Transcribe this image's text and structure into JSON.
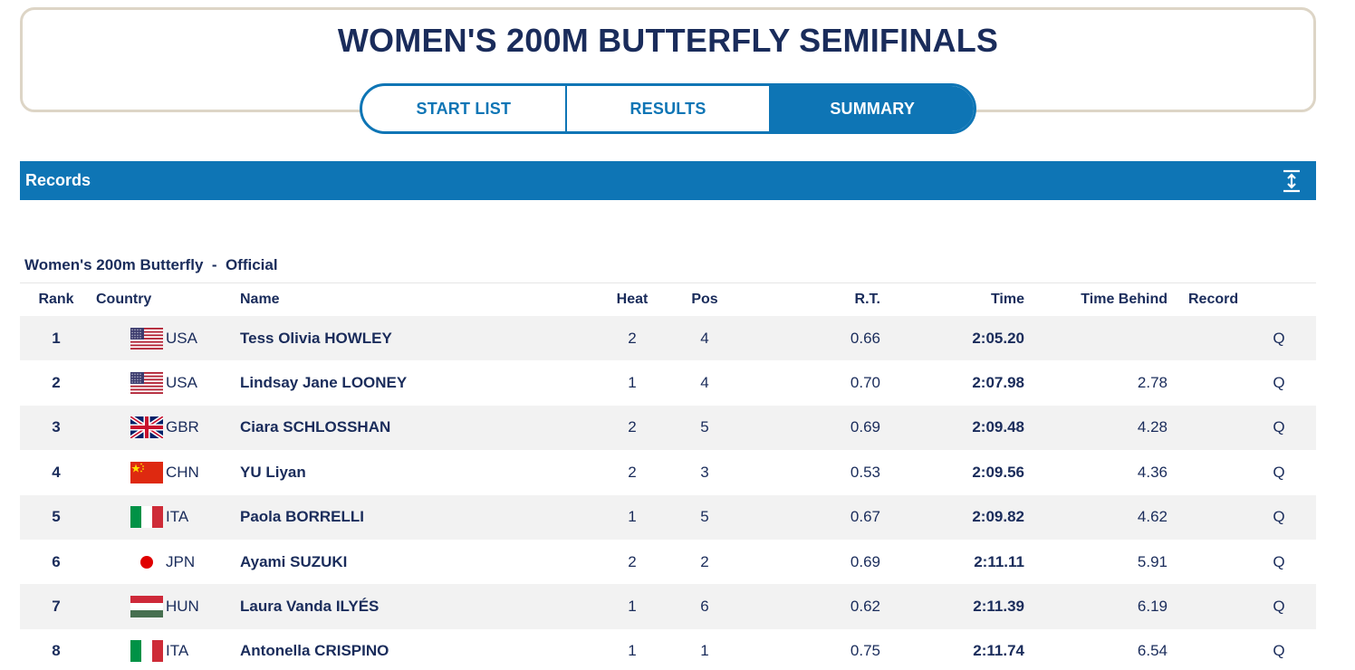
{
  "header": {
    "title": "WOMEN'S 200M BUTTERFLY SEMIFINALS",
    "tabs": [
      {
        "label": "START LIST",
        "active": false
      },
      {
        "label": "RESULTS",
        "active": false
      },
      {
        "label": "SUMMARY",
        "active": true
      }
    ]
  },
  "records": {
    "label": "Records",
    "icon": "expand-vertical-icon"
  },
  "event": {
    "subtitle": "Women's 200m Butterfly  -  Official"
  },
  "table": {
    "columns": [
      "Rank",
      "Country",
      "Name",
      "Heat",
      "Pos",
      "R.T.",
      "Time",
      "Time Behind",
      "Record"
    ],
    "rows": [
      {
        "rank": "1",
        "flag": "usa-flag-icon",
        "country": "USA",
        "name": "Tess Olivia HOWLEY",
        "heat": "2",
        "pos": "4",
        "rt": "0.66",
        "time": "2:05.20",
        "behind": "",
        "record": "Q"
      },
      {
        "rank": "2",
        "flag": "usa-flag-icon",
        "country": "USA",
        "name": "Lindsay Jane LOONEY",
        "heat": "1",
        "pos": "4",
        "rt": "0.70",
        "time": "2:07.98",
        "behind": "2.78",
        "record": "Q"
      },
      {
        "rank": "3",
        "flag": "gbr-flag-icon",
        "country": "GBR",
        "name": "Ciara SCHLOSSHAN",
        "heat": "2",
        "pos": "5",
        "rt": "0.69",
        "time": "2:09.48",
        "behind": "4.28",
        "record": "Q"
      },
      {
        "rank": "4",
        "flag": "chn-flag-icon",
        "country": "CHN",
        "name": "YU Liyan",
        "heat": "2",
        "pos": "3",
        "rt": "0.53",
        "time": "2:09.56",
        "behind": "4.36",
        "record": "Q"
      },
      {
        "rank": "5",
        "flag": "ita-flag-icon",
        "country": "ITA",
        "name": "Paola BORRELLI",
        "heat": "1",
        "pos": "5",
        "rt": "0.67",
        "time": "2:09.82",
        "behind": "4.62",
        "record": "Q"
      },
      {
        "rank": "6",
        "flag": "jpn-flag-icon",
        "country": "JPN",
        "name": "Ayami SUZUKI",
        "heat": "2",
        "pos": "2",
        "rt": "0.69",
        "time": "2:11.11",
        "behind": "5.91",
        "record": "Q"
      },
      {
        "rank": "7",
        "flag": "hun-flag-icon",
        "country": "HUN",
        "name": "Laura Vanda ILYÉS",
        "heat": "1",
        "pos": "6",
        "rt": "0.62",
        "time": "2:11.39",
        "behind": "6.19",
        "record": "Q"
      },
      {
        "rank": "8",
        "flag": "ita-flag-icon",
        "country": "ITA",
        "name": "Antonella CRISPINO",
        "heat": "1",
        "pos": "1",
        "rt": "0.75",
        "time": "2:11.74",
        "behind": "6.54",
        "record": "Q"
      }
    ]
  },
  "colors": {
    "primary": "#0e75b5",
    "text": "#1a2c5b",
    "row_alt": "#f2f2f2",
    "card_border": "#ddd5c6"
  }
}
